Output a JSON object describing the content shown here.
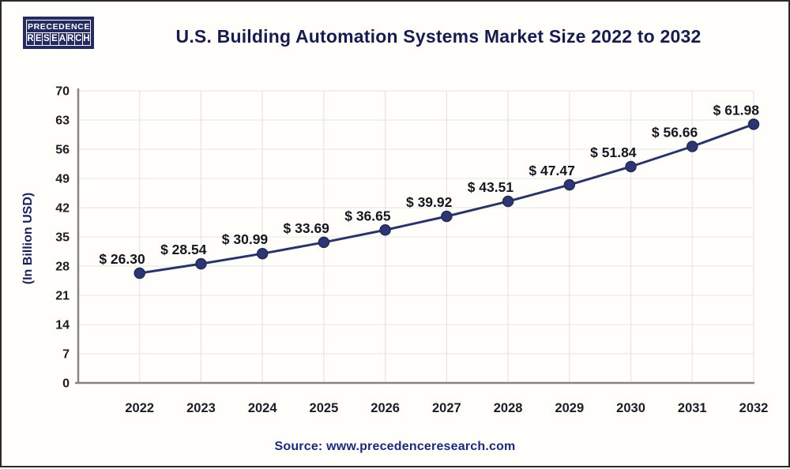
{
  "page": {
    "logo": {
      "line1": "PRECEDENCE",
      "line2": "RESEARCH"
    },
    "title": "U.S. Building Automation Systems Market Size 2022 to 2032",
    "source": "Source: www.precedenceresearch.com"
  },
  "colors": {
    "line": "#2a3468",
    "marker_fill": "#2d3671",
    "marker_stroke": "#222a55",
    "data_label": "#16161f",
    "tick_label": "#1c1c24",
    "axis_line": "#858585",
    "h_gridline": "#e9e9e9",
    "v_gridline": "#e4e4e6",
    "y_axis_title": "#1b2158",
    "title": "#181c4d",
    "source": "#1e2a78",
    "logo_bg": "#242b5e"
  },
  "chart_data": {
    "type": "line",
    "title": "U.S. Building Automation Systems Market Size 2022 to 2032",
    "categories": [
      "2022",
      "2023",
      "2024",
      "2025",
      "2026",
      "2027",
      "2028",
      "2029",
      "2030",
      "2031",
      "2032"
    ],
    "values": [
      26.3,
      28.54,
      30.99,
      33.69,
      36.65,
      39.92,
      43.51,
      47.47,
      51.84,
      56.66,
      61.98
    ],
    "data_labels": [
      "$ 26.30",
      "$ 28.54",
      "$ 30.99",
      "$ 33.69",
      "$ 36.65",
      "$ 39.92",
      "$ 43.51",
      "$ 47.47",
      "$ 51.84",
      "$ 56.66",
      "$ 61.98"
    ],
    "xlabel": "",
    "ylabel": "(In Billion USD)",
    "ylim": [
      0,
      70
    ],
    "ytick_step": 7,
    "ytick_labels": [
      "0",
      "7",
      "14",
      "21",
      "28",
      "35",
      "42",
      "49",
      "56",
      "63",
      "70"
    ],
    "grid": true,
    "legend_position": "none"
  }
}
